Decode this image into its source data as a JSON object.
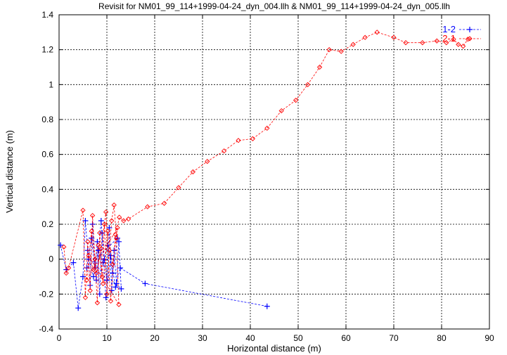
{
  "chart_data": {
    "type": "scatter",
    "title": "Revisit for NM01_99_114+1999-04-24_dyn_004.llh & NM01_99_114+1999-04-24_dyn_005.llh",
    "xlabel": "Horizontal distance (m)",
    "ylabel": "Vertical distance (m)",
    "xlim": [
      0,
      90
    ],
    "ylim": [
      -0.4,
      1.4
    ],
    "xticks": [
      "0",
      "10",
      "20",
      "30",
      "40",
      "50",
      "60",
      "70",
      "80",
      "90"
    ],
    "yticks": [
      "-0.4",
      "-0.2",
      "0",
      "0.2",
      "0.4",
      "0.6",
      "0.8",
      "1",
      "1.2",
      "1.4"
    ],
    "grid": true,
    "legend_position": "top-right",
    "series": [
      {
        "name": "1-2",
        "color": "#0000ff",
        "marker": "plus",
        "points": [
          [
            0.3,
            0.08
          ],
          [
            1.5,
            -0.06
          ],
          [
            3.0,
            -0.02
          ],
          [
            4.0,
            -0.28
          ],
          [
            5.0,
            -0.1
          ],
          [
            5.5,
            0.22
          ],
          [
            6.0,
            0.05
          ],
          [
            6.5,
            -0.15
          ],
          [
            7.0,
            0.2
          ],
          [
            7.5,
            -0.05
          ],
          [
            8.0,
            0.1
          ],
          [
            8.5,
            -0.2
          ],
          [
            9.0,
            0.15
          ],
          [
            9.5,
            0.0
          ],
          [
            10.0,
            -0.12
          ],
          [
            10.5,
            0.18
          ],
          [
            11.0,
            -0.18
          ],
          [
            11.5,
            0.05
          ],
          [
            12.0,
            -0.14
          ],
          [
            12.5,
            0.1
          ],
          [
            13.0,
            -0.17
          ],
          [
            6.2,
            0.0
          ],
          [
            7.2,
            -0.1
          ],
          [
            8.2,
            0.05
          ],
          [
            9.2,
            -0.02
          ],
          [
            10.2,
            0.08
          ],
          [
            11.2,
            -0.08
          ],
          [
            12.2,
            0.12
          ],
          [
            5.8,
            -0.05
          ],
          [
            6.8,
            0.12
          ],
          [
            7.8,
            -0.12
          ],
          [
            8.8,
            0.22
          ],
          [
            9.8,
            -0.22
          ],
          [
            10.8,
            0.02
          ],
          [
            11.8,
            -0.16
          ],
          [
            12.8,
            -0.05
          ],
          [
            18.0,
            -0.14
          ],
          [
            43.5,
            -0.27
          ]
        ]
      },
      {
        "name": "2-1",
        "color": "#ff0000",
        "marker": "diamond",
        "points": [
          [
            1.0,
            0.07
          ],
          [
            1.5,
            -0.08
          ],
          [
            2.0,
            -0.05
          ],
          [
            5.0,
            0.28
          ],
          [
            5.5,
            -0.22
          ],
          [
            6.0,
            0.1
          ],
          [
            6.5,
            -0.18
          ],
          [
            7.0,
            0.25
          ],
          [
            7.5,
            0.0
          ],
          [
            8.0,
            -0.25
          ],
          [
            8.5,
            0.15
          ],
          [
            9.0,
            -0.1
          ],
          [
            9.5,
            0.2
          ],
          [
            10.0,
            -0.2
          ],
          [
            10.5,
            0.05
          ],
          [
            11.0,
            0.22
          ],
          [
            11.5,
            0.31
          ],
          [
            12.0,
            0.12
          ],
          [
            12.5,
            -0.26
          ],
          [
            6.2,
            0.02
          ],
          [
            7.2,
            -0.06
          ],
          [
            8.2,
            0.08
          ],
          [
            9.2,
            -0.14
          ],
          [
            10.2,
            0.16
          ],
          [
            11.2,
            -0.03
          ],
          [
            12.2,
            0.18
          ],
          [
            5.8,
            -0.12
          ],
          [
            6.8,
            0.16
          ],
          [
            7.8,
            -0.08
          ],
          [
            8.8,
            0.06
          ],
          [
            9.8,
            0.27
          ],
          [
            10.8,
            -0.24
          ],
          [
            11.8,
            0.14
          ],
          [
            12.6,
            0.24
          ],
          [
            13.5,
            0.22
          ],
          [
            14.5,
            0.23
          ],
          [
            18.5,
            0.3
          ],
          [
            22.0,
            0.32
          ],
          [
            25.0,
            0.41
          ],
          [
            28.0,
            0.5
          ],
          [
            31.0,
            0.56
          ],
          [
            34.5,
            0.62
          ],
          [
            37.5,
            0.68
          ],
          [
            40.5,
            0.69
          ],
          [
            43.5,
            0.75
          ],
          [
            46.5,
            0.85
          ],
          [
            49.5,
            0.91
          ],
          [
            52.0,
            1.0
          ],
          [
            54.5,
            1.1
          ],
          [
            56.5,
            1.2
          ],
          [
            59.0,
            1.19
          ],
          [
            61.5,
            1.23
          ],
          [
            64.0,
            1.27
          ],
          [
            66.5,
            1.3
          ],
          [
            70.0,
            1.27
          ],
          [
            72.5,
            1.24
          ],
          [
            76.0,
            1.24
          ],
          [
            79.0,
            1.25
          ],
          [
            81.0,
            1.24
          ],
          [
            82.5,
            1.26
          ],
          [
            83.5,
            1.23
          ],
          [
            84.5,
            1.22
          ],
          [
            85.5,
            1.26
          ]
        ]
      }
    ]
  }
}
